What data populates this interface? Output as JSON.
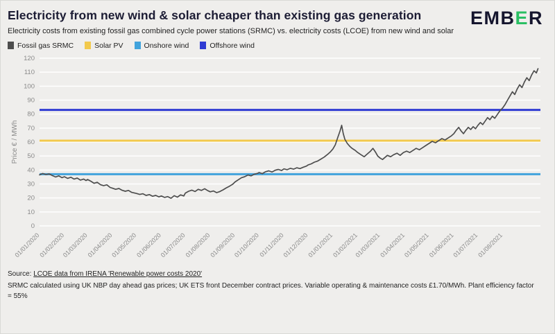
{
  "header": {
    "title": "Electricity from new wind & solar cheaper than existing gas generation",
    "subtitle": "Electricity costs from existing fossil gas combined cycle power stations (SRMC) vs. electricity costs (LCOE) from new wind and solar",
    "logo": {
      "part1": "EMB",
      "part2": "E",
      "part3": "R",
      "accent_color": "#2abf63"
    }
  },
  "legend": [
    {
      "label": "Fossil gas SRMC",
      "color": "#4d4d4d"
    },
    {
      "label": "Solar PV",
      "color": "#f2c94c"
    },
    {
      "label": "Onshore wind",
      "color": "#41a3dc"
    },
    {
      "label": "Offshore wind",
      "color": "#2f3bd3"
    }
  ],
  "chart_data": {
    "type": "line",
    "title": "Electricity from new wind & solar cheaper than existing gas generation",
    "ylabel": "Price € / MWh",
    "ylim": [
      0,
      120
    ],
    "yticks": [
      0,
      10,
      20,
      30,
      40,
      50,
      60,
      70,
      80,
      90,
      100,
      110,
      120
    ],
    "x_domain_days": [
      0,
      625
    ],
    "x_tick_days": [
      0,
      31,
      60,
      91,
      121,
      152,
      182,
      213,
      244,
      274,
      305,
      335,
      366,
      397,
      425,
      456,
      486,
      517,
      547,
      578
    ],
    "x_tick_labels": [
      "01/01/2020",
      "01/02/2020",
      "01/03/2020",
      "01/04/2020",
      "01/05/2020",
      "01/06/2020",
      "01/07/2020",
      "01/08/2020",
      "01/09/2020",
      "01/10/2020",
      "01/11/2020",
      "01/12/2020",
      "01/01/2021",
      "01/02/2021",
      "01/03/2021",
      "01/04/2021",
      "01/05/2021",
      "01/06/2021",
      "01/07/2021",
      "01/08/2021"
    ],
    "grid": "horizontal-white",
    "legend_position": "top",
    "reference_lines": [
      {
        "name": "Offshore wind",
        "value": 83,
        "color": "#2f3bd3"
      },
      {
        "name": "Solar PV",
        "value": 61,
        "color": "#f2c94c"
      },
      {
        "name": "Onshore wind",
        "value": 37,
        "color": "#41a3dc"
      }
    ],
    "series": [
      {
        "name": "Fossil gas SRMC",
        "color": "#4d4d4d",
        "points": [
          [
            0,
            36.5
          ],
          [
            4,
            37.5
          ],
          [
            8,
            36.8
          ],
          [
            12,
            37.2
          ],
          [
            16,
            36.0
          ],
          [
            20,
            35.0
          ],
          [
            24,
            35.8
          ],
          [
            28,
            34.5
          ],
          [
            31,
            35.2
          ],
          [
            35,
            34.0
          ],
          [
            39,
            34.8
          ],
          [
            43,
            33.5
          ],
          [
            47,
            34.2
          ],
          [
            51,
            32.8
          ],
          [
            55,
            33.5
          ],
          [
            58,
            32.5
          ],
          [
            60,
            33.2
          ],
          [
            64,
            32.0
          ],
          [
            68,
            30.5
          ],
          [
            72,
            31.2
          ],
          [
            76,
            29.5
          ],
          [
            80,
            28.8
          ],
          [
            84,
            29.4
          ],
          [
            88,
            27.5
          ],
          [
            91,
            27.0
          ],
          [
            95,
            26.2
          ],
          [
            99,
            26.8
          ],
          [
            103,
            25.5
          ],
          [
            107,
            24.8
          ],
          [
            111,
            25.4
          ],
          [
            115,
            24.0
          ],
          [
            121,
            23.2
          ],
          [
            125,
            22.5
          ],
          [
            129,
            23.0
          ],
          [
            133,
            21.8
          ],
          [
            137,
            22.4
          ],
          [
            141,
            21.2
          ],
          [
            145,
            21.8
          ],
          [
            149,
            20.8
          ],
          [
            152,
            21.4
          ],
          [
            156,
            20.4
          ],
          [
            160,
            21.0
          ],
          [
            164,
            19.8
          ],
          [
            168,
            21.6
          ],
          [
            172,
            20.6
          ],
          [
            176,
            22.2
          ],
          [
            180,
            21.4
          ],
          [
            182,
            23.5
          ],
          [
            186,
            24.8
          ],
          [
            190,
            25.6
          ],
          [
            194,
            24.6
          ],
          [
            198,
            26.2
          ],
          [
            202,
            25.4
          ],
          [
            206,
            26.6
          ],
          [
            210,
            25.2
          ],
          [
            213,
            24.4
          ],
          [
            217,
            25.0
          ],
          [
            221,
            23.8
          ],
          [
            225,
            24.6
          ],
          [
            229,
            25.8
          ],
          [
            233,
            27.2
          ],
          [
            237,
            28.4
          ],
          [
            241,
            29.8
          ],
          [
            244,
            31.5
          ],
          [
            248,
            33.0
          ],
          [
            252,
            34.5
          ],
          [
            256,
            35.2
          ],
          [
            260,
            36.4
          ],
          [
            264,
            35.8
          ],
          [
            268,
            37.0
          ],
          [
            272,
            37.6
          ],
          [
            274,
            38.2
          ],
          [
            278,
            37.4
          ],
          [
            282,
            38.8
          ],
          [
            286,
            39.4
          ],
          [
            290,
            38.6
          ],
          [
            294,
            39.8
          ],
          [
            298,
            40.4
          ],
          [
            302,
            39.6
          ],
          [
            305,
            40.8
          ],
          [
            309,
            40.2
          ],
          [
            313,
            41.2
          ],
          [
            317,
            40.6
          ],
          [
            321,
            41.6
          ],
          [
            325,
            41.0
          ],
          [
            329,
            42.0
          ],
          [
            333,
            42.8
          ],
          [
            335,
            43.6
          ],
          [
            339,
            44.4
          ],
          [
            343,
            45.6
          ],
          [
            347,
            46.4
          ],
          [
            351,
            47.8
          ],
          [
            355,
            49.2
          ],
          [
            359,
            51.0
          ],
          [
            363,
            53.0
          ],
          [
            366,
            55.0
          ],
          [
            369,
            58.0
          ],
          [
            372,
            63.0
          ],
          [
            375,
            68.0
          ],
          [
            377,
            72.0
          ],
          [
            379,
            66.0
          ],
          [
            381,
            62.0
          ],
          [
            384,
            59.0
          ],
          [
            387,
            57.0
          ],
          [
            390,
            55.5
          ],
          [
            394,
            54.0
          ],
          [
            397,
            52.5
          ],
          [
            401,
            51.0
          ],
          [
            405,
            49.5
          ],
          [
            409,
            51.5
          ],
          [
            413,
            53.5
          ],
          [
            416,
            55.5
          ],
          [
            419,
            53.0
          ],
          [
            422,
            50.0
          ],
          [
            425,
            48.5
          ],
          [
            428,
            47.5
          ],
          [
            431,
            49.0
          ],
          [
            434,
            50.5
          ],
          [
            438,
            49.5
          ],
          [
            442,
            51.0
          ],
          [
            446,
            52.0
          ],
          [
            450,
            50.5
          ],
          [
            454,
            52.5
          ],
          [
            458,
            53.5
          ],
          [
            462,
            52.5
          ],
          [
            466,
            54.0
          ],
          [
            470,
            55.5
          ],
          [
            474,
            54.5
          ],
          [
            478,
            56.0
          ],
          [
            482,
            57.5
          ],
          [
            486,
            59.0
          ],
          [
            490,
            60.5
          ],
          [
            494,
            59.5
          ],
          [
            498,
            61.0
          ],
          [
            502,
            62.5
          ],
          [
            506,
            61.5
          ],
          [
            510,
            63.0
          ],
          [
            514,
            64.5
          ],
          [
            517,
            66.0
          ],
          [
            520,
            68.5
          ],
          [
            523,
            70.5
          ],
          [
            526,
            68.0
          ],
          [
            529,
            66.0
          ],
          [
            532,
            68.5
          ],
          [
            535,
            70.5
          ],
          [
            538,
            69.0
          ],
          [
            541,
            71.0
          ],
          [
            544,
            69.5
          ],
          [
            547,
            72.0
          ],
          [
            550,
            74.0
          ],
          [
            553,
            72.5
          ],
          [
            556,
            75.0
          ],
          [
            559,
            77.5
          ],
          [
            562,
            76.0
          ],
          [
            565,
            78.5
          ],
          [
            568,
            77.0
          ],
          [
            571,
            79.5
          ],
          [
            574,
            82.0
          ],
          [
            578,
            84.5
          ],
          [
            581,
            87.0
          ],
          [
            584,
            90.0
          ],
          [
            587,
            93.0
          ],
          [
            590,
            96.0
          ],
          [
            593,
            94.0
          ],
          [
            596,
            98.0
          ],
          [
            599,
            101.0
          ],
          [
            602,
            99.0
          ],
          [
            605,
            103.0
          ],
          [
            608,
            106.0
          ],
          [
            611,
            104.0
          ],
          [
            614,
            108.0
          ],
          [
            617,
            111.0
          ],
          [
            620,
            109.5
          ],
          [
            622,
            112.5
          ]
        ]
      }
    ]
  },
  "footer": {
    "source_prefix": "Source: ",
    "source_link": "LCOE data from IRENA 'Renewable power costs 2020'",
    "note_line1": "SRMC calculated using UK NBP day ahead gas prices; UK ETS front December contract prices. Variable operating & maintenance costs £1.70/MWh. Plant efficiency factor",
    "note_line2": "= 55%"
  }
}
